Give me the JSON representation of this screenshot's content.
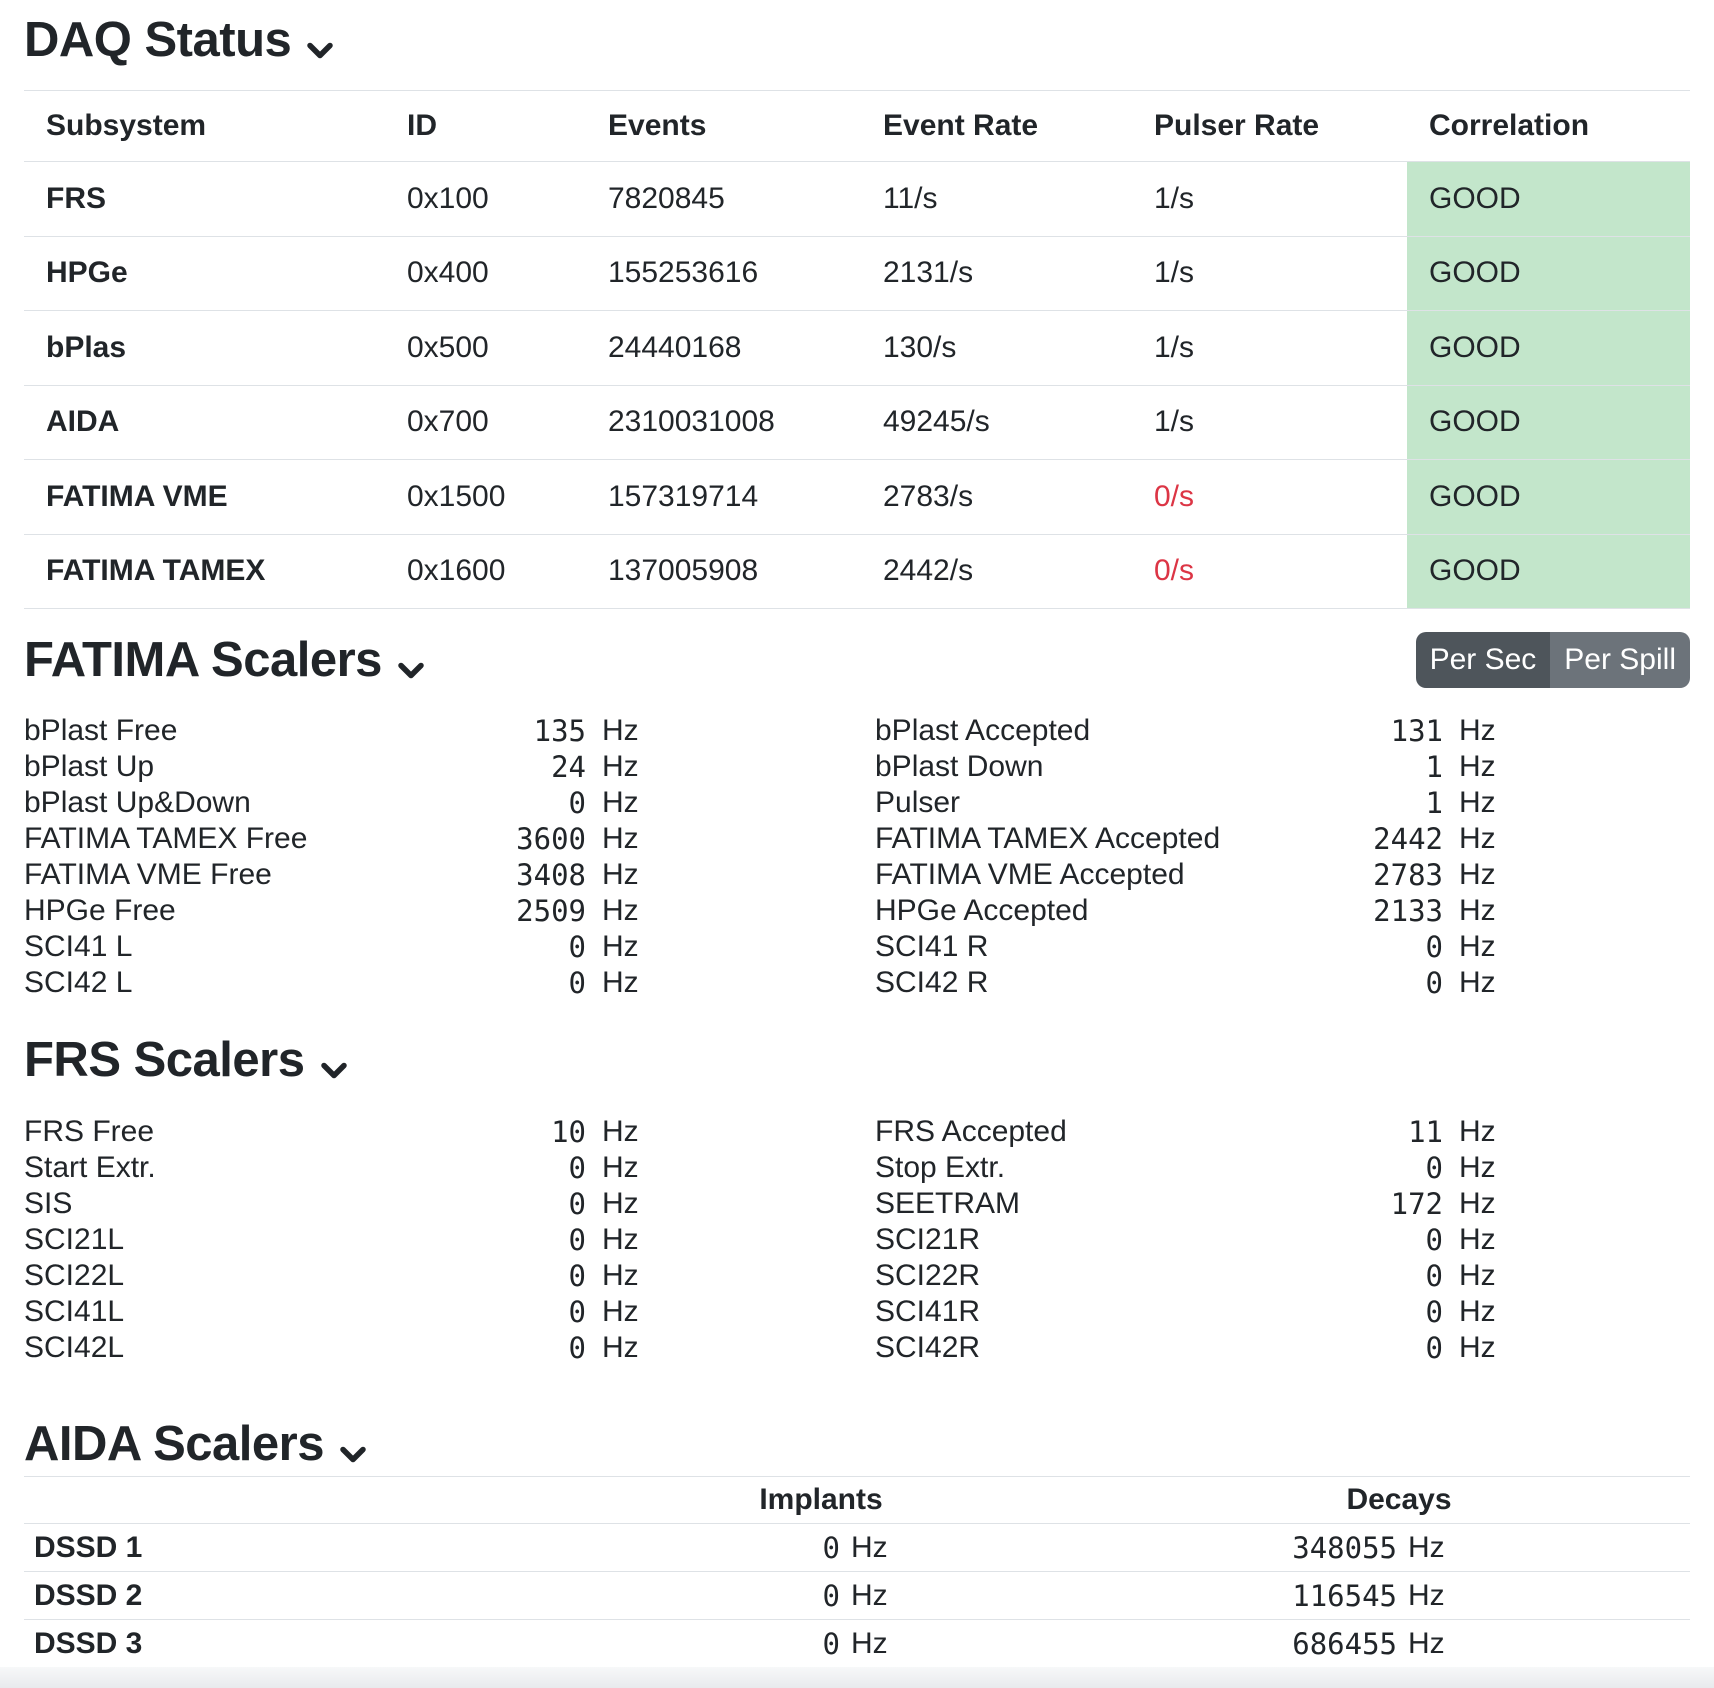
{
  "colors": {
    "good_bg": "#c3e6cb",
    "danger_text": "#dc3545",
    "border": "#dee2e6",
    "text": "#212529",
    "toggle_active_bg": "#4e555b",
    "toggle_inactive_bg": "#6c737a"
  },
  "daq_status": {
    "title": "DAQ Status",
    "columns": [
      "Subsystem",
      "ID",
      "Events",
      "Event Rate",
      "Pulser Rate",
      "Correlation"
    ],
    "rows": [
      {
        "subsystem": "FRS",
        "id": "0x100",
        "events": "7820845",
        "event_rate": "11/s",
        "pulser_rate": "1/s",
        "pulser_alert": false,
        "correlation": "GOOD"
      },
      {
        "subsystem": "HPGe",
        "id": "0x400",
        "events": "155253616",
        "event_rate": "2131/s",
        "pulser_rate": "1/s",
        "pulser_alert": false,
        "correlation": "GOOD"
      },
      {
        "subsystem": "bPlas",
        "id": "0x500",
        "events": "24440168",
        "event_rate": "130/s",
        "pulser_rate": "1/s",
        "pulser_alert": false,
        "correlation": "GOOD"
      },
      {
        "subsystem": "AIDA",
        "id": "0x700",
        "events": "2310031008",
        "event_rate": "49245/s",
        "pulser_rate": "1/s",
        "pulser_alert": false,
        "correlation": "GOOD"
      },
      {
        "subsystem": "FATIMA VME",
        "id": "0x1500",
        "events": "157319714",
        "event_rate": "2783/s",
        "pulser_rate": "0/s",
        "pulser_alert": true,
        "correlation": "GOOD"
      },
      {
        "subsystem": "FATIMA TAMEX",
        "id": "0x1600",
        "events": "137005908",
        "event_rate": "2442/s",
        "pulser_rate": "0/s",
        "pulser_alert": true,
        "correlation": "GOOD"
      }
    ]
  },
  "fatima_scalers": {
    "title": "FATIMA Scalers",
    "unit": "Hz",
    "toggle": {
      "options": [
        "Per Sec",
        "Per Spill"
      ],
      "selected": "Per Sec"
    },
    "left": [
      {
        "label": "bPlast Free",
        "value": "135"
      },
      {
        "label": "bPlast Up",
        "value": "24"
      },
      {
        "label": "bPlast Up&Down",
        "value": "0"
      },
      {
        "label": "FATIMA TAMEX Free",
        "value": "3600"
      },
      {
        "label": "FATIMA VME Free",
        "value": "3408"
      },
      {
        "label": "HPGe Free",
        "value": "2509"
      },
      {
        "label": "SCI41 L",
        "value": "0"
      },
      {
        "label": "SCI42 L",
        "value": "0"
      }
    ],
    "right": [
      {
        "label": "bPlast Accepted",
        "value": "131"
      },
      {
        "label": "bPlast Down",
        "value": "1"
      },
      {
        "label": "Pulser",
        "value": "1"
      },
      {
        "label": "FATIMA TAMEX Accepted",
        "value": "2442"
      },
      {
        "label": "FATIMA VME Accepted",
        "value": "2783"
      },
      {
        "label": "HPGe Accepted",
        "value": "2133"
      },
      {
        "label": "SCI41 R",
        "value": "0"
      },
      {
        "label": "SCI42 R",
        "value": "0"
      }
    ]
  },
  "frs_scalers": {
    "title": "FRS Scalers",
    "unit": "Hz",
    "left": [
      {
        "label": "FRS Free",
        "value": "10"
      },
      {
        "label": "Start Extr.",
        "value": "0"
      },
      {
        "label": "SIS",
        "value": "0"
      },
      {
        "label": "SCI21L",
        "value": "0"
      },
      {
        "label": "SCI22L",
        "value": "0"
      },
      {
        "label": "SCI41L",
        "value": "0"
      },
      {
        "label": "SCI42L",
        "value": "0"
      }
    ],
    "right": [
      {
        "label": "FRS Accepted",
        "value": "11"
      },
      {
        "label": "Stop Extr.",
        "value": "0"
      },
      {
        "label": "SEETRAM",
        "value": "172"
      },
      {
        "label": "SCI21R",
        "value": "0"
      },
      {
        "label": "SCI22R",
        "value": "0"
      },
      {
        "label": "SCI41R",
        "value": "0"
      },
      {
        "label": "SCI42R",
        "value": "0"
      }
    ]
  },
  "aida_scalers": {
    "title": "AIDA Scalers",
    "columns": [
      "Implants",
      "Decays"
    ],
    "unit": "Hz",
    "rows": [
      {
        "name": "DSSD 1",
        "implants": "0",
        "decays": "348055"
      },
      {
        "name": "DSSD 2",
        "implants": "0",
        "decays": "116545"
      },
      {
        "name": "DSSD 3",
        "implants": "0",
        "decays": "686455"
      }
    ]
  }
}
